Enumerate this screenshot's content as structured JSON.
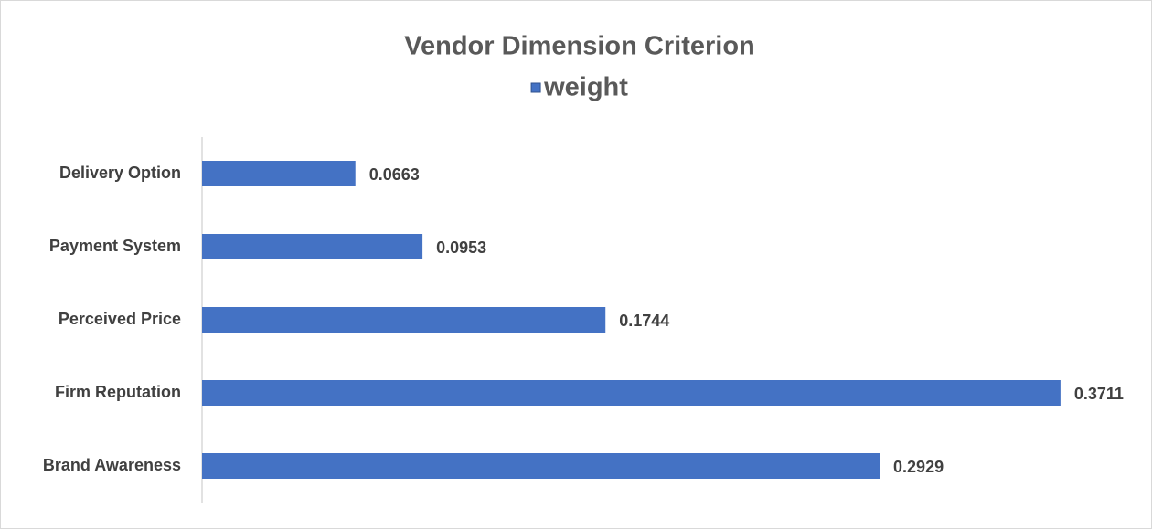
{
  "chart_data": {
    "type": "bar",
    "orientation": "horizontal",
    "title": "Vendor Dimension Criterion",
    "categories": [
      "Delivery Option",
      "Payment System",
      "Perceived Price",
      "Firm Reputation",
      "Brand Awareness"
    ],
    "series": [
      {
        "name": "weight",
        "color": "#4472c4",
        "values": [
          0.0663,
          0.0953,
          0.1744,
          0.3711,
          0.2929
        ]
      }
    ],
    "xlim": [
      0,
      0.4
    ],
    "legend": "top"
  }
}
